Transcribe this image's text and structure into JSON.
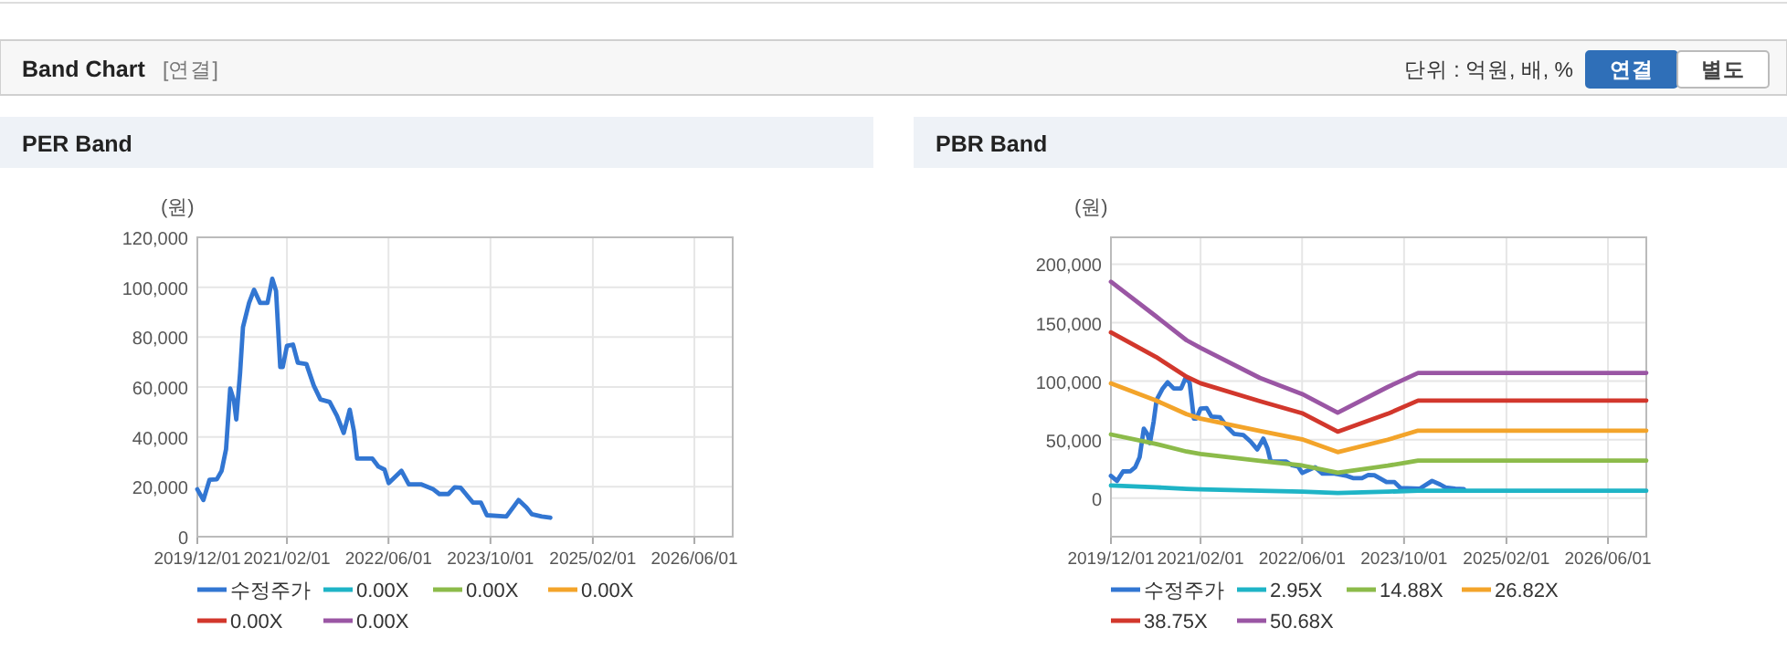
{
  "chart_data": [
    {
      "type": "other",
      "title": "Band Chart",
      "annotations": [
        "[연결]",
        "단위 : 억원, 배, %",
        "연결",
        "별도"
      ]
    },
    {
      "type": "line",
      "title": "PER Band",
      "ylabel": "(원)",
      "grid": true,
      "legend": "bottom",
      "line_style": "solid",
      "marker": "none",
      "xlim": [
        "2019-12-01",
        "2026-12-01"
      ],
      "xticks": [
        {
          "value": "2019-12-01",
          "label": "2019/12/01"
        },
        {
          "value": "2021-02-01",
          "label": "2021/02/01"
        },
        {
          "value": "2022-06-01",
          "label": "2022/06/01"
        },
        {
          "value": "2023-10-01",
          "label": "2023/10/01"
        },
        {
          "value": "2025-02-01",
          "label": "2025/02/01"
        },
        {
          "value": "2026-06-01",
          "label": "2026/06/01"
        }
      ],
      "ylim": [
        0,
        120000
      ],
      "yticks": [
        {
          "value": 0,
          "label": "0"
        },
        {
          "value": 20000,
          "label": "20,000"
        },
        {
          "value": 40000,
          "label": "40,000"
        },
        {
          "value": 60000,
          "label": "60,000"
        },
        {
          "value": 80000,
          "label": "80,000"
        },
        {
          "value": 100000,
          "label": "100,000"
        },
        {
          "value": 120000,
          "label": "120,000"
        }
      ],
      "series": [
        {
          "name": "수정주가",
          "color": "#3276d2",
          "x": [
            "2019-12-01",
            "2019-12-30",
            "2020-01-28",
            "2020-03-03",
            "2020-03-26",
            "2020-04-16",
            "2020-05-06",
            "2020-05-24",
            "2020-06-04",
            "2020-06-22",
            "2020-07-06",
            "2020-08-04",
            "2020-08-28",
            "2020-09-26",
            "2020-10-31",
            "2020-11-23",
            "2020-12-11",
            "2020-12-31",
            "2021-01-12",
            "2021-02-01",
            "2021-03-02",
            "2021-03-25",
            "2021-05-05",
            "2021-06-09",
            "2021-07-11",
            "2021-08-24",
            "2021-09-28",
            "2021-10-30",
            "2021-11-28",
            "2021-12-18",
            "2022-01-02",
            "2022-03-16",
            "2022-04-14",
            "2022-05-13",
            "2022-06-02",
            "2022-08-02",
            "2022-09-06",
            "2022-11-03",
            "2023-01-01",
            "2023-01-30",
            "2023-03-14",
            "2023-04-13",
            "2023-05-12",
            "2023-07-09",
            "2023-08-16",
            "2023-09-14",
            "2023-12-16",
            "2024-02-12",
            "2024-03-21",
            "2024-04-16",
            "2024-06-02",
            "2024-07-13"
          ],
          "values": [
            19000,
            14700,
            22800,
            23000,
            26400,
            35000,
            59400,
            54500,
            47000,
            65500,
            84000,
            93700,
            99000,
            93700,
            93700,
            103400,
            98500,
            68000,
            68000,
            76500,
            77000,
            69700,
            69200,
            60600,
            55000,
            54000,
            48400,
            41600,
            50900,
            42300,
            31300,
            31300,
            28100,
            26900,
            21500,
            26400,
            21000,
            21000,
            19000,
            17100,
            17100,
            19800,
            19600,
            13700,
            13700,
            8600,
            8100,
            14700,
            11700,
            9000,
            8100,
            7600
          ]
        },
        {
          "name": "0.00X",
          "color": "#1eb4c6"
        },
        {
          "name": "0.00X",
          "color": "#8cbb4a"
        },
        {
          "name": "0.00X",
          "color": "#f3a42a"
        },
        {
          "name": "0.00X",
          "color": "#d2372c"
        },
        {
          "name": "0.00X",
          "color": "#9a56a4"
        }
      ]
    },
    {
      "type": "line",
      "title": "PBR Band",
      "ylabel": "(원)",
      "grid": true,
      "legend": "bottom",
      "line_style": "solid",
      "marker": "none",
      "xlim": [
        "2019-12-01",
        "2026-12-01"
      ],
      "xticks": [
        {
          "value": "2019-12-01",
          "label": "2019/12/01"
        },
        {
          "value": "2021-02-01",
          "label": "2021/02/01"
        },
        {
          "value": "2022-06-01",
          "label": "2022/06/01"
        },
        {
          "value": "2023-10-01",
          "label": "2023/10/01"
        },
        {
          "value": "2025-02-01",
          "label": "2025/02/01"
        },
        {
          "value": "2026-06-01",
          "label": "2026/06/01"
        }
      ],
      "ylim": [
        -33000,
        223000
      ],
      "yticks": [
        {
          "value": 0,
          "label": "0"
        },
        {
          "value": 50000,
          "label": "50,000"
        },
        {
          "value": 100000,
          "label": "100,000"
        },
        {
          "value": 150000,
          "label": "150,000"
        },
        {
          "value": 200000,
          "label": "200,000"
        }
      ],
      "series": [
        {
          "name": "수정주가",
          "color": "#3276d2",
          "x": [
            "2019-12-01",
            "2019-12-30",
            "2020-01-28",
            "2020-03-03",
            "2020-03-26",
            "2020-04-16",
            "2020-05-06",
            "2020-05-24",
            "2020-06-04",
            "2020-06-22",
            "2020-07-06",
            "2020-08-04",
            "2020-08-28",
            "2020-09-26",
            "2020-10-31",
            "2020-11-23",
            "2020-12-11",
            "2020-12-31",
            "2021-01-12",
            "2021-02-01",
            "2021-03-02",
            "2021-03-25",
            "2021-05-05",
            "2021-06-09",
            "2021-07-11",
            "2021-08-24",
            "2021-09-28",
            "2021-10-30",
            "2021-11-28",
            "2021-12-18",
            "2022-01-02",
            "2022-03-16",
            "2022-04-14",
            "2022-05-13",
            "2022-06-02",
            "2022-08-02",
            "2022-09-06",
            "2022-11-03",
            "2023-01-01",
            "2023-01-30",
            "2023-03-14",
            "2023-04-13",
            "2023-05-12",
            "2023-07-09",
            "2023-08-16",
            "2023-09-14",
            "2023-12-16",
            "2024-02-12",
            "2024-03-21",
            "2024-04-16",
            "2024-06-02",
            "2024-07-13"
          ],
          "values": [
            19000,
            14700,
            22800,
            23000,
            26400,
            35000,
            59400,
            54500,
            47000,
            65500,
            84000,
            93700,
            99000,
            93700,
            93700,
            103400,
            98500,
            68000,
            68000,
            76500,
            77000,
            69700,
            69200,
            60600,
            55000,
            54000,
            48400,
            41600,
            50900,
            42300,
            31300,
            31300,
            28100,
            26900,
            21500,
            26400,
            21000,
            21000,
            19000,
            17100,
            17100,
            19800,
            19600,
            13700,
            13700,
            8600,
            8100,
            14700,
            11700,
            9000,
            8100,
            7600
          ]
        },
        {
          "name": "2.95X",
          "color": "#1eb4c6",
          "x": [
            "2019-12-01",
            "2020-07-03",
            "2020-11-26",
            "2021-02-01",
            "2021-11-11",
            "2022-06-01",
            "2022-11-18",
            "2023-07-15",
            "2023-12-07",
            "2026-12-01"
          ],
          "values": [
            10800,
            9200,
            7900,
            7500,
            6300,
            5500,
            4300,
            5500,
            6300,
            6300
          ]
        },
        {
          "name": "14.88X",
          "color": "#8cbb4a",
          "x": [
            "2019-12-01",
            "2020-07-03",
            "2020-11-26",
            "2021-02-01",
            "2021-11-11",
            "2022-06-01",
            "2022-11-18",
            "2023-07-15",
            "2023-12-07",
            "2026-12-01"
          ],
          "values": [
            54400,
            46300,
            39800,
            37700,
            31800,
            27900,
            21800,
            27700,
            32000,
            32000
          ]
        },
        {
          "name": "26.82X",
          "color": "#f3a42a",
          "x": [
            "2019-12-01",
            "2020-07-03",
            "2020-11-26",
            "2021-02-01",
            "2021-11-11",
            "2022-06-01",
            "2022-11-18",
            "2023-07-15",
            "2023-12-07",
            "2026-12-01"
          ],
          "values": [
            98100,
            83500,
            71800,
            68000,
            57400,
            50300,
            39300,
            49900,
            57700,
            57700
          ]
        },
        {
          "name": "38.75X",
          "color": "#d2372c",
          "x": [
            "2019-12-01",
            "2020-07-03",
            "2020-11-26",
            "2021-02-01",
            "2021-11-11",
            "2022-06-01",
            "2022-11-18",
            "2023-07-15",
            "2023-12-07",
            "2026-12-01"
          ],
          "values": [
            141700,
            120700,
            103800,
            98200,
            82900,
            72600,
            56800,
            72100,
            83400,
            83400
          ]
        },
        {
          "name": "50.68X",
          "color": "#9a56a4",
          "x": [
            "2019-12-01",
            "2020-07-03",
            "2020-11-26",
            "2021-02-01",
            "2021-11-11",
            "2022-06-01",
            "2022-11-18",
            "2023-07-15",
            "2023-12-07",
            "2026-12-01"
          ],
          "values": [
            185000,
            155500,
            135000,
            128400,
            102800,
            89000,
            73000,
            95000,
            107000,
            107000
          ]
        }
      ]
    }
  ]
}
